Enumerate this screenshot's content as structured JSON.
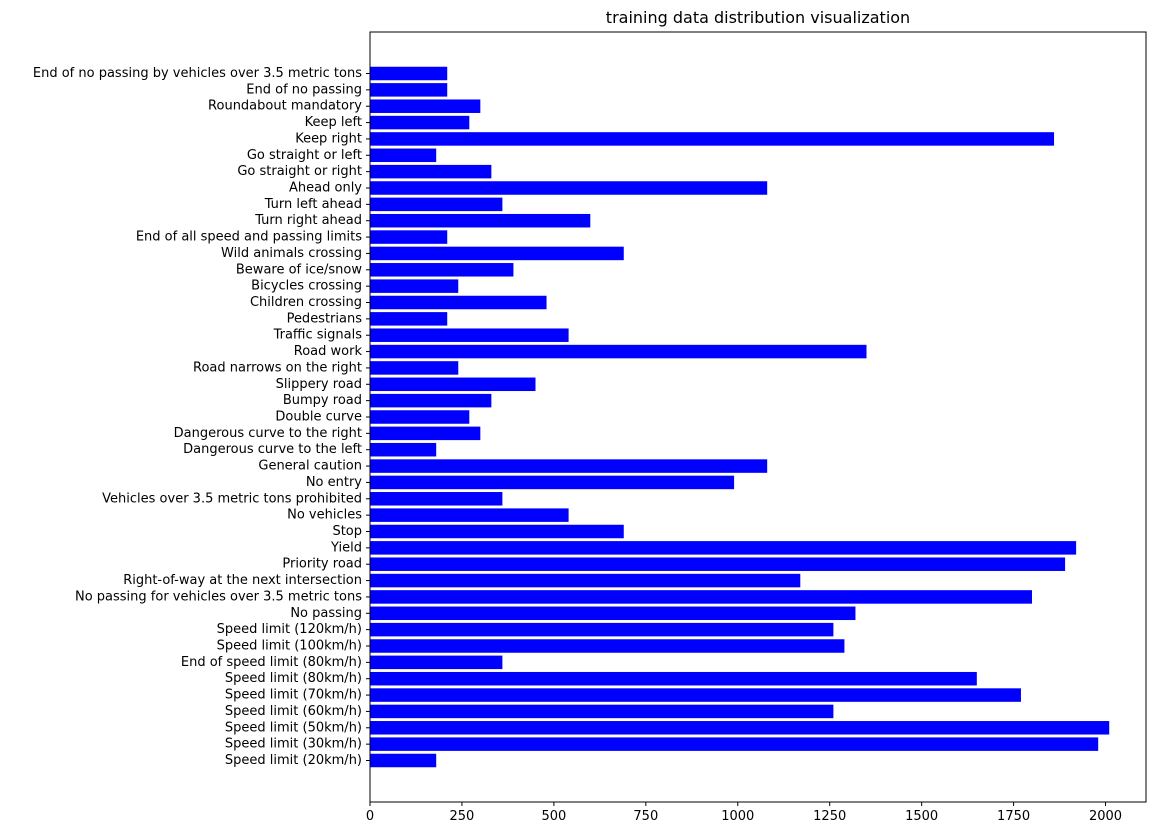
{
  "chart_data": {
    "type": "bar",
    "orientation": "horizontal",
    "title": "training data distribution visualization",
    "xlabel": "",
    "ylabel": "",
    "xlim": [
      0,
      2110
    ],
    "xticks": [
      0,
      250,
      500,
      750,
      1000,
      1250,
      1500,
      1750,
      2000
    ],
    "grid": false,
    "legend": "none",
    "bar_color": "#0000ff",
    "categories": [
      "Speed limit (20km/h)",
      "Speed limit (30km/h)",
      "Speed limit (50km/h)",
      "Speed limit (60km/h)",
      "Speed limit (70km/h)",
      "Speed limit (80km/h)",
      "End of speed limit (80km/h)",
      "Speed limit (100km/h)",
      "Speed limit (120km/h)",
      "No passing",
      "No passing for vehicles over 3.5 metric tons",
      "Right-of-way at the next intersection",
      "Priority road",
      "Yield",
      "Stop",
      "No vehicles",
      "Vehicles over 3.5 metric tons prohibited",
      "No entry",
      "General caution",
      "Dangerous curve to the left",
      "Dangerous curve to the right",
      "Double curve",
      "Bumpy road",
      "Slippery road",
      "Road narrows on the right",
      "Road work",
      "Traffic signals",
      "Pedestrians",
      "Children crossing",
      "Bicycles crossing",
      "Beware of ice/snow",
      "Wild animals crossing",
      "End of all speed and passing limits",
      "Turn right ahead",
      "Turn left ahead",
      "Ahead only",
      "Go straight or right",
      "Go straight or left",
      "Keep right",
      "Keep left",
      "Roundabout mandatory",
      "End of no passing",
      "End of no passing by vehicles over 3.5 metric tons"
    ],
    "values": [
      180,
      1980,
      2010,
      1260,
      1770,
      1650,
      360,
      1290,
      1260,
      1320,
      1800,
      1170,
      1890,
      1920,
      690,
      540,
      360,
      990,
      1080,
      180,
      300,
      270,
      330,
      450,
      240,
      1350,
      540,
      210,
      480,
      240,
      390,
      690,
      210,
      599,
      360,
      1080,
      330,
      180,
      1860,
      270,
      300,
      210,
      210
    ]
  }
}
